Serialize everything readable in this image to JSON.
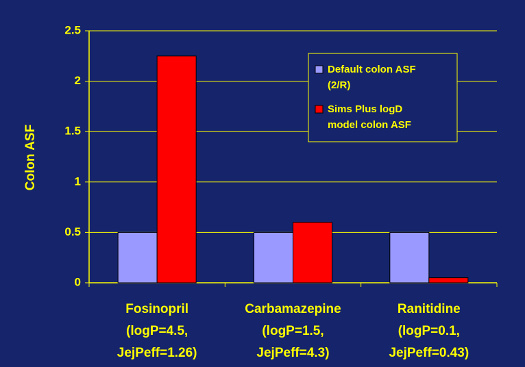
{
  "chart_data": {
    "type": "bar",
    "y_label": "Colon ASF",
    "categories": [
      "Fosinopril\n(logP=4.5,\nJejPeff=1.26)",
      "Carbamazepine\n(logP=1.5,\nJejPeff=4.3)",
      "Ranitidine\n(logP=0.1,\nJejPeff=0.43)"
    ],
    "series": [
      {
        "name": "Default colon ASF\n(2/R)",
        "color": "#9999ff",
        "values": [
          0.5,
          0.5,
          0.5
        ]
      },
      {
        "name": "Sims Plus logD\nmodel colon ASF",
        "color": "#ff0000",
        "values": [
          2.25,
          0.6,
          0.05
        ]
      }
    ],
    "ylim": [
      0,
      2.5
    ],
    "yticks": [
      0,
      0.5,
      1,
      1.5,
      2,
      2.5
    ],
    "grid": true
  }
}
